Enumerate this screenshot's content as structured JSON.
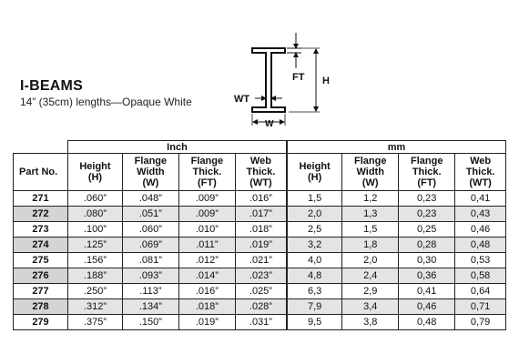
{
  "header": {
    "title": "I-BEAMS",
    "subtitle": "14” (35cm) lengths—Opaque White"
  },
  "diagram": {
    "label_ft": "FT",
    "label_h": "H",
    "label_wt": "WT",
    "label_w": "W"
  },
  "table": {
    "part_header": "Part No.",
    "group_inch": "Inch",
    "group_mm": "mm",
    "columns": [
      [
        "Height",
        "(H)"
      ],
      [
        "Flange",
        "Width",
        "(W)"
      ],
      [
        "Flange",
        "Thick.",
        "(FT)"
      ],
      [
        "Web",
        "Thick.",
        "(WT)"
      ],
      [
        "Height",
        "(H)"
      ],
      [
        "Flange",
        "Width",
        "(W)"
      ],
      [
        "Flange",
        "Thick.",
        "(FT)"
      ],
      [
        "Web",
        "Thick.",
        "(WT)"
      ]
    ],
    "rows": [
      [
        "271",
        ".060”",
        ".048”",
        ".009”",
        ".016”",
        "1,5",
        "1,2",
        "0,23",
        "0,41"
      ],
      [
        "272",
        ".080”",
        ".051”",
        ".009”",
        ".017”",
        "2,0",
        "1,3",
        "0,23",
        "0,43"
      ],
      [
        "273",
        ".100”",
        ".060”",
        ".010”",
        ".018”",
        "2,5",
        "1,5",
        "0,25",
        "0,46"
      ],
      [
        "274",
        ".125”",
        ".069”",
        ".011”",
        ".019”",
        "3,2",
        "1,8",
        "0,28",
        "0,48"
      ],
      [
        "275",
        ".156”",
        ".081”",
        ".012”",
        ".021”",
        "4,0",
        "2,0",
        "0,30",
        "0,53"
      ],
      [
        "276",
        ".188”",
        ".093”",
        ".014”",
        ".023”",
        "4,8",
        "2,4",
        "0,36",
        "0,58"
      ],
      [
        "277",
        ".250”",
        ".113”",
        ".016”",
        ".025”",
        "6,3",
        "2,9",
        "0,41",
        "0,64"
      ],
      [
        "278",
        ".312”",
        ".134”",
        ".018”",
        ".028”",
        "7,9",
        "3,4",
        "0,46",
        "0,71"
      ],
      [
        "279",
        ".375”",
        ".150”",
        ".019”",
        ".031”",
        "9,5",
        "3,8",
        "0,48",
        "0,79"
      ]
    ]
  }
}
